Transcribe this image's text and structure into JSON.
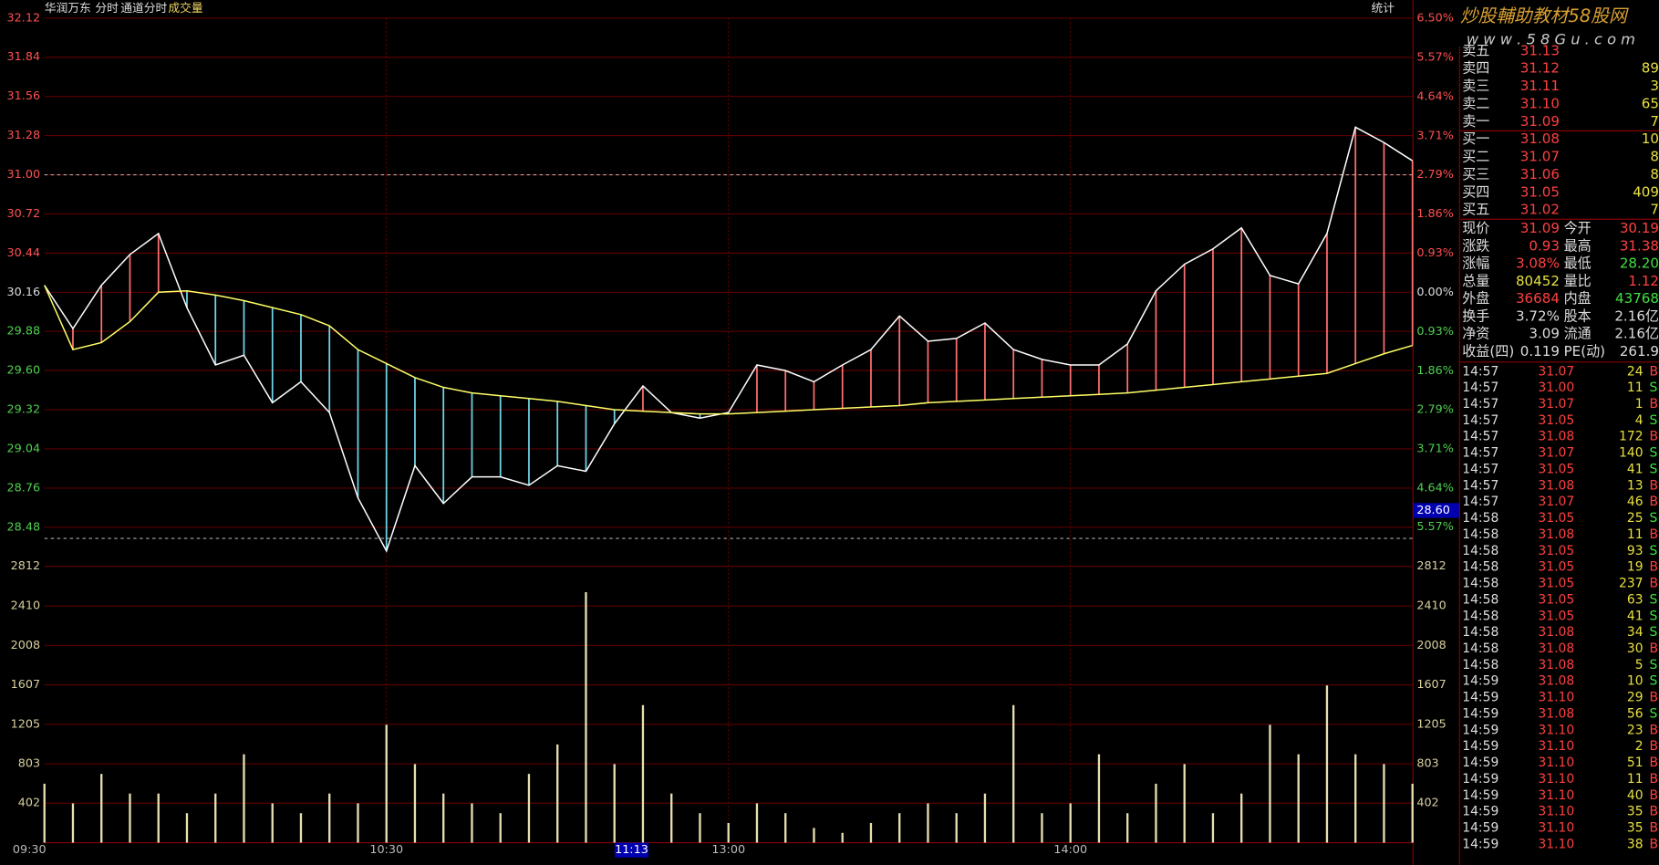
{
  "header": {
    "stock": "华润万东",
    "tabs": [
      "分时",
      "通道分时",
      "成交量"
    ],
    "stat": "统计",
    "watermark": "炒股輔助教材58股网",
    "url": "w w w . 5 8 G u . c o m"
  },
  "chart_data": [
    {
      "type": "line",
      "x": [
        0,
        5,
        10,
        15,
        20,
        25,
        30,
        35,
        40,
        45,
        50,
        55,
        60,
        65,
        70,
        75,
        80,
        85,
        90,
        95,
        100,
        105,
        110,
        115,
        120,
        125,
        130,
        135,
        140,
        145,
        150,
        155,
        160,
        165,
        170,
        175,
        180,
        185,
        190,
        195,
        200,
        205,
        210,
        215,
        220,
        225,
        230,
        235,
        240
      ],
      "xlim": [
        0,
        240
      ],
      "xticks": [
        {
          "value": 0,
          "label": "09:30"
        },
        {
          "value": 60,
          "label": "10:30"
        },
        {
          "value": 120,
          "label": "13:00"
        },
        {
          "value": 180,
          "label": "14:00"
        }
      ],
      "ylim": [
        28.2,
        32.12
      ],
      "yticks": [
        32.12,
        31.84,
        31.56,
        31.28,
        {
          "value": 31,
          "label": "31.00"
        },
        30.72,
        30.44,
        30.16,
        29.88,
        {
          "value": 29.6,
          "label": "29.60"
        },
        29.32,
        29.04,
        28.76,
        28.48
      ],
      "y2lim": [
        -6.5,
        6.5
      ],
      "y2ticks": [
        {
          "value": 6.5,
          "label": "6.50%"
        },
        {
          "value": 5.57,
          "label": "5.57%"
        },
        {
          "value": 4.64,
          "label": "4.64%"
        },
        {
          "value": 3.71,
          "label": "3.71%"
        },
        {
          "value": 2.79,
          "label": "2.79%"
        },
        {
          "value": 1.86,
          "label": "1.86%"
        },
        {
          "value": 0.93,
          "label": "0.93%"
        },
        {
          "value": 0,
          "label": "0.00%"
        },
        {
          "value": -0.93,
          "label": "0.93%"
        },
        {
          "value": -1.86,
          "label": "1.86%"
        },
        {
          "value": -2.79,
          "label": "2.79%"
        },
        {
          "value": -3.71,
          "label": "3.71%"
        },
        {
          "value": -4.64,
          "label": "4.64%"
        },
        {
          "value": -5.57,
          "label": "5.57%"
        }
      ],
      "series": [
        {
          "color": "#ffffff",
          "values": [
            30.21,
            29.9,
            30.21,
            30.43,
            30.58,
            30.05,
            29.64,
            29.71,
            29.37,
            29.52,
            29.3,
            28.69,
            28.31,
            28.92,
            28.65,
            28.84,
            28.84,
            28.78,
            28.92,
            28.88,
            29.22,
            29.49,
            29.3,
            29.26,
            29.3,
            29.64,
            29.6,
            29.52,
            29.64,
            29.75,
            29.99,
            29.81,
            29.83,
            29.94,
            29.75,
            29.68,
            29.64,
            29.64,
            29.79,
            30.17,
            30.36,
            30.47,
            30.62,
            30.28,
            30.22,
            30.58,
            31.34,
            31.23,
            31.1
          ]
        },
        {
          "color": "#ffff66",
          "values": [
            30.21,
            29.75,
            29.8,
            29.95,
            30.16,
            30.17,
            30.14,
            30.1,
            30.05,
            30.0,
            29.92,
            29.75,
            29.65,
            29.55,
            29.48,
            29.44,
            29.42,
            29.4,
            29.38,
            29.35,
            29.32,
            29.31,
            29.3,
            29.29,
            29.29,
            29.3,
            29.31,
            29.32,
            29.33,
            29.34,
            29.35,
            29.37,
            29.38,
            29.39,
            29.4,
            29.41,
            29.42,
            29.43,
            29.44,
            29.46,
            29.48,
            29.5,
            29.52,
            29.54,
            29.56,
            29.58,
            29.65,
            29.72,
            29.78
          ]
        }
      ],
      "up_color": "#ff7070",
      "down_color": "#6fd8e8",
      "ref_lines": [
        31.0,
        28.4
      ],
      "grid": true,
      "cursor": {
        "x": {
          "value": 103,
          "label": "11:13"
        },
        "y": {
          "value": 28.6,
          "label": "28.60"
        }
      }
    },
    {
      "type": "bar",
      "ylim": [
        0,
        2812
      ],
      "yticks": [
        402,
        803,
        1205,
        1607,
        2008,
        2410,
        2812
      ],
      "color": "#e8e0b0",
      "values": [
        600,
        400,
        700,
        500,
        500,
        300,
        500,
        900,
        400,
        300,
        500,
        400,
        1200,
        800,
        500,
        400,
        300,
        700,
        1000,
        2550,
        800,
        1400,
        500,
        300,
        200,
        400,
        300,
        150,
        100,
        200,
        300,
        400,
        300,
        500,
        1400,
        300,
        400,
        900,
        300,
        600,
        800,
        300,
        500,
        1200,
        900,
        1600,
        900,
        800,
        600
      ]
    }
  ],
  "order_book": [
    [
      "卖五",
      "31.13"
    ],
    [
      "卖四",
      "31.12",
      "89"
    ],
    [
      "卖三",
      "31.11",
      "3"
    ],
    [
      "卖二",
      "31.10",
      "65"
    ],
    [
      "卖一",
      "31.09",
      "7"
    ],
    [
      "买一",
      "31.08",
      "10"
    ],
    [
      "买二",
      "31.07",
      "8"
    ],
    [
      "买三",
      "31.06",
      "8"
    ],
    [
      "买四",
      "31.05",
      "409"
    ],
    [
      "买五",
      "31.02",
      "7"
    ]
  ],
  "stats": [
    [
      "现价",
      "31.09",
      "今开",
      "30.19"
    ],
    [
      "涨跌",
      "0.93",
      "最高",
      "31.38"
    ],
    [
      "涨幅",
      "3.08%",
      "最低",
      "28.20"
    ],
    [
      "总量",
      "80452",
      "量比",
      "1.12"
    ],
    [
      "外盘",
      "36684",
      "内盘",
      "43768"
    ],
    [
      "换手",
      "3.72%",
      "股本",
      "2.16亿"
    ],
    [
      "净资",
      "3.09",
      "流通",
      "2.16亿"
    ],
    [
      "收益(四)",
      "0.119",
      "PE(动)",
      "261.9"
    ]
  ],
  "ticks": [
    [
      "14:57",
      "31.07",
      "24",
      "B"
    ],
    [
      "14:57",
      "31.00",
      "11",
      "S"
    ],
    [
      "14:57",
      "31.07",
      "1",
      "B"
    ],
    [
      "14:57",
      "31.05",
      "4",
      "S"
    ],
    [
      "14:57",
      "31.08",
      "172",
      "B"
    ],
    [
      "14:57",
      "31.07",
      "140",
      "S"
    ],
    [
      "14:57",
      "31.05",
      "41",
      "S"
    ],
    [
      "14:57",
      "31.08",
      "13",
      "B"
    ],
    [
      "14:57",
      "31.07",
      "46",
      "B"
    ],
    [
      "14:58",
      "31.05",
      "25",
      "S"
    ],
    [
      "14:58",
      "31.08",
      "11",
      "B"
    ],
    [
      "14:58",
      "31.05",
      "93",
      "S"
    ],
    [
      "14:58",
      "31.05",
      "19",
      "B"
    ],
    [
      "14:58",
      "31.05",
      "237",
      "B"
    ],
    [
      "14:58",
      "31.05",
      "63",
      "S"
    ],
    [
      "14:58",
      "31.05",
      "41",
      "S"
    ],
    [
      "14:58",
      "31.08",
      "34",
      "S"
    ],
    [
      "14:58",
      "31.08",
      "30",
      "B"
    ],
    [
      "14:58",
      "31.08",
      "5",
      "S"
    ],
    [
      "14:59",
      "31.08",
      "10",
      "S"
    ],
    [
      "14:59",
      "31.10",
      "29",
      "B"
    ],
    [
      "14:59",
      "31.08",
      "56",
      "S"
    ],
    [
      "14:59",
      "31.10",
      "23",
      "B"
    ],
    [
      "14:59",
      "31.10",
      "2",
      "B"
    ],
    [
      "14:59",
      "31.10",
      "51",
      "B"
    ],
    [
      "14:59",
      "31.10",
      "11",
      "B"
    ],
    [
      "14:59",
      "31.10",
      "40",
      "B"
    ],
    [
      "14:59",
      "31.10",
      "35",
      "B"
    ],
    [
      "14:59",
      "31.10",
      "35",
      "B"
    ],
    [
      "14:59",
      "31.10",
      "38",
      "B"
    ]
  ]
}
